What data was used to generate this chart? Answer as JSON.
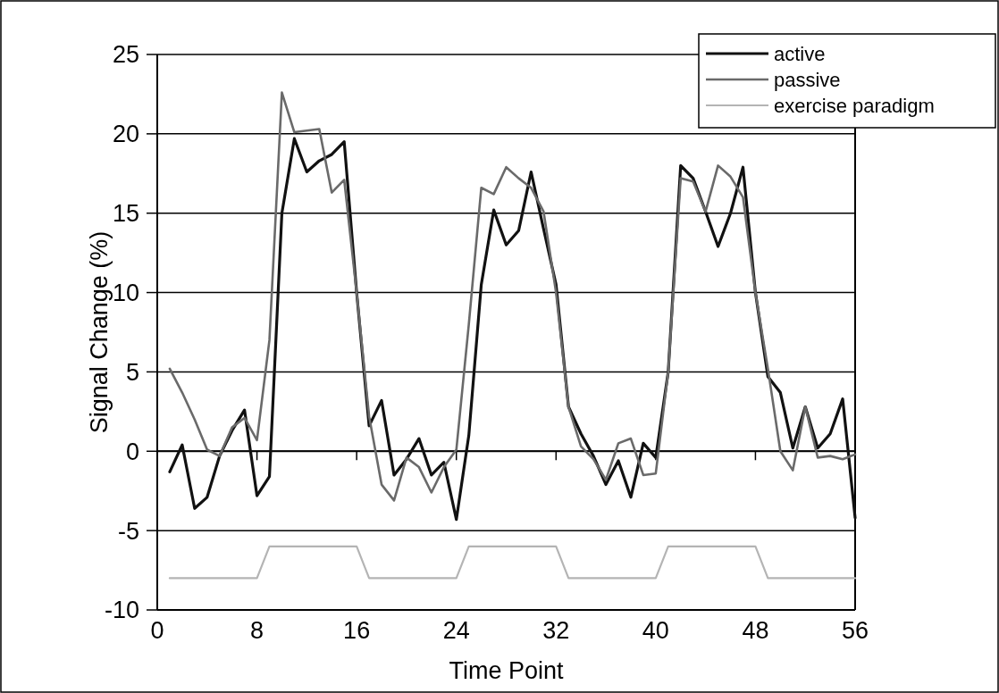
{
  "chart_data": {
    "type": "line",
    "xlabel": "Time Point",
    "ylabel": "Signal Change (%)",
    "x": [
      1,
      2,
      3,
      4,
      5,
      6,
      7,
      8,
      9,
      10,
      11,
      12,
      13,
      14,
      15,
      16,
      17,
      18,
      19,
      20,
      21,
      22,
      23,
      24,
      25,
      26,
      27,
      28,
      29,
      30,
      31,
      32,
      33,
      34,
      35,
      36,
      37,
      38,
      39,
      40,
      41,
      42,
      43,
      44,
      45,
      46,
      47,
      48,
      49,
      50,
      51,
      52,
      53,
      54,
      55,
      56
    ],
    "series": [
      {
        "name": "active",
        "color": "#111111",
        "values": [
          -1.3,
          0.4,
          -3.6,
          -2.9,
          -0.3,
          1.3,
          2.6,
          -2.8,
          -1.6,
          15,
          19.7,
          17.6,
          18.3,
          18.7,
          19.5,
          10,
          1.6,
          3.2,
          -1.5,
          -0.5,
          0.8,
          -1.5,
          -0.7,
          -4.3,
          1,
          10.5,
          15.2,
          13.0,
          13.9,
          17.6,
          14,
          10.5,
          2.8,
          1.1,
          -0.3,
          -2.1,
          -0.6,
          -2.9,
          0.5,
          -0.4,
          5,
          18.0,
          17.2,
          15.1,
          12.9,
          15,
          17.9,
          10,
          4.7,
          3.7,
          0.2,
          2.8,
          0.2,
          1.1,
          3.3,
          -4.2
        ]
      },
      {
        "name": "passive",
        "color": "#6a6a6a",
        "values": [
          5.2,
          3.7,
          2,
          0.1,
          -0.3,
          1.5,
          2.1,
          0.7,
          7,
          22.6,
          20.1,
          20.2,
          20.3,
          16.3,
          17.1,
          10,
          2.2,
          -2.1,
          -3.1,
          -0.4,
          -1,
          -2.6,
          -1,
          0.1,
          8,
          16.6,
          16.2,
          17.9,
          17.2,
          16.6,
          15.1,
          10,
          2.8,
          0.3,
          -0.5,
          -1.8,
          0.5,
          0.8,
          -1.5,
          -1.4,
          5,
          17.2,
          17.0,
          15.1,
          18.0,
          17.3,
          16,
          10,
          5.2,
          0,
          -1.2,
          2.8,
          -0.4,
          -0.3,
          -0.5,
          -0.2
        ]
      },
      {
        "name": "exercise paradigm",
        "color": "#b4b4b4",
        "values": [
          -8,
          -8,
          -8,
          -8,
          -8,
          -8,
          -8,
          -8,
          -6,
          -6,
          -6,
          -6,
          -6,
          -6,
          -6,
          -6,
          -8,
          -8,
          -8,
          -8,
          -8,
          -8,
          -8,
          -8,
          -6,
          -6,
          -6,
          -6,
          -6,
          -6,
          -6,
          -6,
          -8,
          -8,
          -8,
          -8,
          -8,
          -8,
          -8,
          -8,
          -6,
          -6,
          -6,
          -6,
          -6,
          -6,
          -6,
          -6,
          -8,
          -8,
          -8,
          -8,
          -8,
          -8,
          -8,
          -8
        ]
      }
    ],
    "xlim": [
      0,
      56
    ],
    "xticks": [
      0,
      8,
      16,
      24,
      32,
      40,
      48,
      56
    ],
    "ylim": [
      -10,
      25
    ],
    "yticks": [
      -10,
      -5,
      0,
      5,
      10,
      15,
      20,
      25
    ],
    "grid": "y",
    "legend": "top right"
  }
}
